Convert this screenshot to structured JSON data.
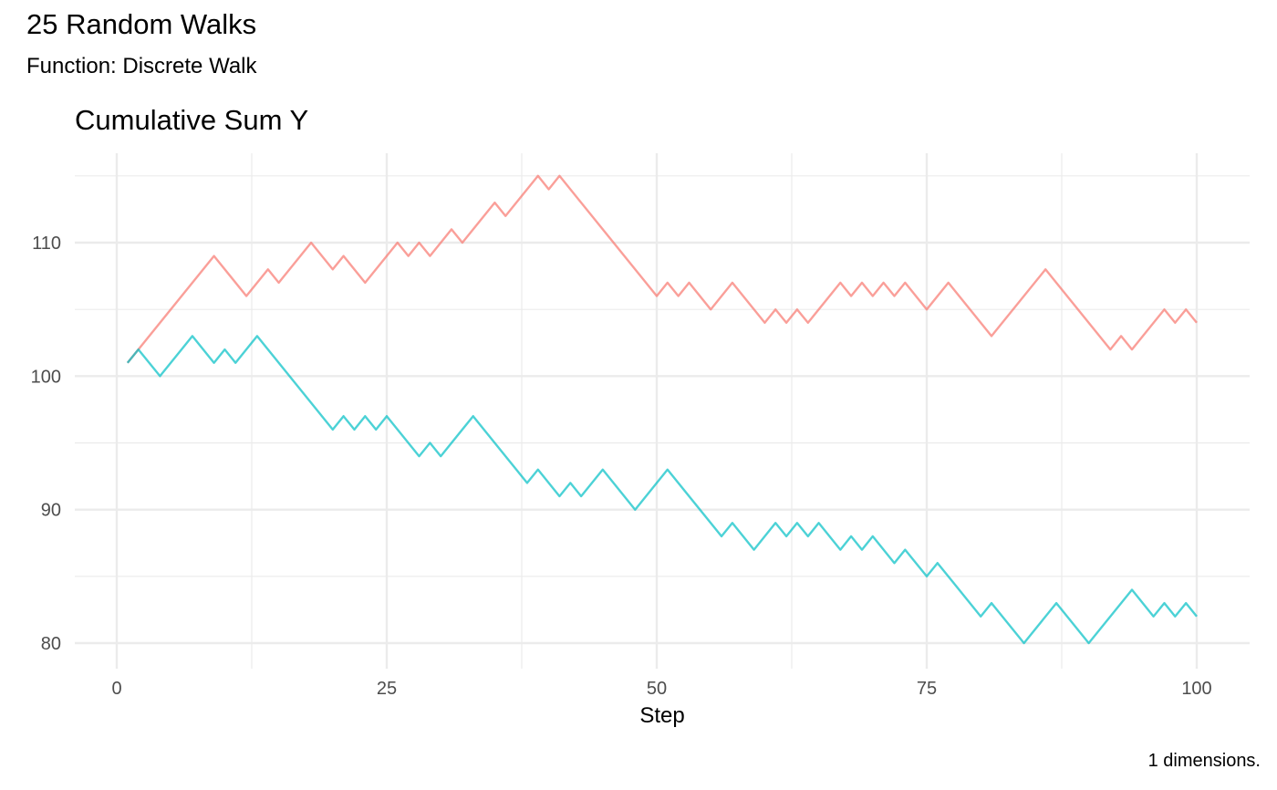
{
  "header": {
    "title": "25 Random Walks",
    "subtitle": "Function: Discrete Walk"
  },
  "caption": "1 dimensions.",
  "chart_data": {
    "type": "line",
    "title": "Cumulative Sum Y",
    "xlabel": "Step",
    "ylabel": "",
    "xlim": [
      0,
      100
    ],
    "ylim": [
      79,
      116
    ],
    "x_ticks": [
      0,
      25,
      50,
      75,
      100
    ],
    "y_ticks": [
      80,
      90,
      100,
      110
    ],
    "grid": true,
    "legend": "none",
    "series": [
      {
        "color": "#F8766D",
        "x": [
          1,
          2,
          9,
          12,
          14,
          15,
          18,
          20,
          21,
          23,
          26,
          27,
          28,
          29,
          31,
          32,
          35,
          36,
          39,
          40,
          41,
          50,
          51,
          52,
          53,
          55,
          57,
          60,
          61,
          62,
          63,
          64,
          67,
          68,
          69,
          70,
          71,
          72,
          73,
          75,
          77,
          81,
          86,
          92,
          93,
          94,
          97,
          98,
          99,
          100
        ],
        "y": [
          101,
          102,
          109,
          106,
          108,
          107,
          110,
          108,
          109,
          107,
          110,
          109,
          110,
          109,
          111,
          110,
          113,
          112,
          115,
          114,
          115,
          106,
          107,
          106,
          107,
          105,
          107,
          104,
          105,
          104,
          105,
          104,
          107,
          106,
          107,
          106,
          107,
          106,
          107,
          105,
          107,
          103,
          108,
          102,
          103,
          102,
          105,
          104,
          105,
          104
        ]
      },
      {
        "color": "#00BFC4",
        "x": [
          1,
          2,
          4,
          7,
          9,
          10,
          11,
          13,
          20,
          21,
          22,
          23,
          24,
          25,
          28,
          29,
          30,
          33,
          38,
          39,
          41,
          42,
          43,
          45,
          48,
          51,
          56,
          57,
          59,
          61,
          62,
          63,
          64,
          65,
          67,
          68,
          69,
          70,
          72,
          73,
          75,
          76,
          80,
          81,
          84,
          87,
          90,
          94,
          96,
          97,
          98,
          99,
          100
        ],
        "y": [
          101,
          102,
          100,
          103,
          101,
          102,
          101,
          103,
          96,
          97,
          96,
          97,
          96,
          97,
          94,
          95,
          94,
          97,
          92,
          93,
          91,
          92,
          91,
          93,
          90,
          93,
          88,
          89,
          87,
          89,
          88,
          89,
          88,
          89,
          87,
          88,
          87,
          88,
          86,
          87,
          85,
          86,
          82,
          83,
          80,
          83,
          80,
          84,
          82,
          83,
          82,
          83,
          82
        ]
      }
    ]
  }
}
